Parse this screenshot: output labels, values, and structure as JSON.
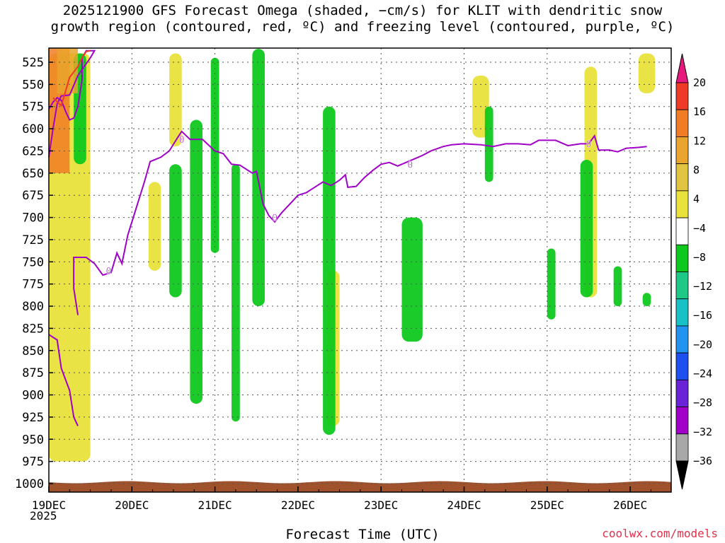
{
  "title": "2025121900 GFS Forecast Omega (shaded, −cm/s) for KLIT with dendritic snow\ngrowth region (contoured, red, ºC) and freezing level (contoured, purple, ºC)",
  "footer": {
    "xlabel": "Forecast Time (UTC)",
    "credit": "coolwx.com/models",
    "year": "2025"
  },
  "chart_data": {
    "type": "heatmap",
    "title": "2025121900 GFS Forecast Omega (shaded, −cm/s) for KLIT with dendritic snow growth region (contoured, red, ºC) and freezing level (contoured, purple, ºC)",
    "xlabel": "Forecast Time (UTC)",
    "ylabel": "",
    "x_ticks": [
      "19DEC",
      "20DEC",
      "21DEC",
      "22DEC",
      "23DEC",
      "24DEC",
      "25DEC",
      "26DEC"
    ],
    "x_range_days": [
      0,
      7.5
    ],
    "y_ticks": [
      525,
      550,
      575,
      600,
      625,
      650,
      675,
      700,
      725,
      750,
      775,
      800,
      825,
      850,
      875,
      900,
      925,
      950,
      975,
      1000
    ],
    "y_range_hpa": [
      510,
      1010
    ],
    "grid": true,
    "colorbar": {
      "labels": [
        "20",
        "16",
        "12",
        "8",
        "4",
        "−4",
        "−8",
        "−12",
        "−16",
        "−20",
        "−24",
        "−28",
        "−32",
        "−36"
      ],
      "colors": [
        "#e8197e",
        "#f03a28",
        "#f07c25",
        "#e9a52d",
        "#e3c440",
        "#e9e23c",
        "#ffffff",
        "#0fc81e",
        "#1ec887",
        "#18c0c8",
        "#2294f0",
        "#1e50f0",
        "#6a23d6",
        "#a000c8",
        "#a8a8a8",
        "#000000"
      ]
    },
    "freezing_level": {
      "label": "0",
      "points": [
        [
          0,
          632
        ],
        [
          0.05,
          600
        ],
        [
          0.1,
          572
        ],
        [
          0.15,
          563
        ],
        [
          0.25,
          562
        ],
        [
          0.35,
          540
        ],
        [
          0.5,
          520
        ],
        [
          0.55,
          512
        ],
        [
          0.45,
          512
        ],
        [
          0.4,
          520
        ],
        [
          0.4,
          545
        ],
        [
          0.35,
          575
        ],
        [
          0.3,
          588
        ],
        [
          0.25,
          590
        ],
        [
          0.2,
          580
        ],
        [
          0.15,
          568
        ],
        [
          0.1,
          565
        ],
        [
          0.05,
          570
        ],
        [
          0,
          578
        ]
      ],
      "main": [
        [
          0.35,
          810
        ],
        [
          0.3,
          780
        ],
        [
          0.3,
          745
        ],
        [
          0.45,
          745
        ],
        [
          0.55,
          752
        ],
        [
          0.65,
          765
        ],
        [
          0.75,
          762
        ],
        [
          0.82,
          740
        ],
        [
          0.88,
          752
        ],
        [
          0.95,
          720
        ],
        [
          1.05,
          690
        ],
        [
          1.15,
          660
        ],
        [
          1.22,
          637
        ],
        [
          1.35,
          632
        ],
        [
          1.45,
          625
        ],
        [
          1.55,
          610
        ],
        [
          1.6,
          603
        ],
        [
          1.7,
          612
        ],
        [
          1.85,
          612
        ],
        [
          2.0,
          625
        ],
        [
          2.1,
          628
        ],
        [
          2.2,
          640
        ],
        [
          2.3,
          641
        ],
        [
          2.45,
          650
        ],
        [
          2.5,
          648
        ],
        [
          2.58,
          685
        ],
        [
          2.65,
          698
        ],
        [
          2.72,
          705
        ],
        [
          2.8,
          695
        ],
        [
          2.9,
          685
        ],
        [
          3.0,
          675
        ],
        [
          3.1,
          672
        ],
        [
          3.2,
          666
        ],
        [
          3.3,
          660
        ],
        [
          3.4,
          664
        ],
        [
          3.5,
          658
        ],
        [
          3.57,
          652
        ],
        [
          3.6,
          666
        ],
        [
          3.7,
          665
        ],
        [
          3.8,
          655
        ],
        [
          3.9,
          647
        ],
        [
          4.0,
          640
        ],
        [
          4.1,
          638
        ],
        [
          4.2,
          642
        ],
        [
          4.35,
          636
        ],
        [
          4.5,
          630
        ],
        [
          4.6,
          625
        ],
        [
          4.75,
          620
        ],
        [
          4.85,
          618
        ],
        [
          5.0,
          617
        ],
        [
          5.2,
          618
        ],
        [
          5.35,
          620
        ],
        [
          5.5,
          617
        ],
        [
          5.65,
          617
        ],
        [
          5.8,
          618
        ],
        [
          5.9,
          613
        ],
        [
          6.1,
          613
        ],
        [
          6.25,
          619
        ],
        [
          6.4,
          617
        ],
        [
          6.5,
          617
        ],
        [
          6.57,
          608
        ],
        [
          6.62,
          624
        ],
        [
          6.75,
          624
        ],
        [
          6.85,
          626
        ],
        [
          6.95,
          622
        ],
        [
          7.1,
          621
        ],
        [
          7.2,
          620
        ]
      ],
      "lower": [
        [
          0,
          832
        ],
        [
          0.1,
          838
        ],
        [
          0.15,
          870
        ],
        [
          0.25,
          895
        ],
        [
          0.3,
          925
        ],
        [
          0.35,
          935
        ]
      ]
    },
    "dendritic_region": {
      "label": "",
      "points": [
        [
          0.05,
          565
        ],
        [
          0.15,
          574
        ],
        [
          0.25,
          542
        ],
        [
          0.35,
          530
        ],
        [
          0.4,
          520
        ],
        [
          0.45,
          513
        ],
        [
          0.5,
          512
        ]
      ]
    },
    "omega_shading": [
      {
        "band": "4 to 8",
        "desc": "yellow ascent plumes",
        "blobs": [
          [
            0.0,
            0.5,
            515,
            975
          ],
          [
            1.2,
            1.35,
            660,
            760
          ],
          [
            1.45,
            1.6,
            515,
            620
          ],
          [
            3.35,
            3.5,
            760,
            935
          ],
          [
            5.1,
            5.3,
            540,
            610
          ],
          [
            6.45,
            6.6,
            530,
            790
          ],
          [
            7.1,
            7.3,
            515,
            560
          ]
        ]
      },
      {
        "band": "-4 to -8",
        "desc": "green subsidence columns",
        "blobs": [
          [
            0.3,
            0.45,
            515,
            640
          ],
          [
            1.45,
            1.6,
            640,
            790
          ],
          [
            1.7,
            1.85,
            590,
            910
          ],
          [
            1.95,
            2.05,
            520,
            740
          ],
          [
            2.2,
            2.3,
            640,
            930
          ],
          [
            2.45,
            2.6,
            510,
            800
          ],
          [
            3.3,
            3.45,
            575,
            945
          ],
          [
            4.25,
            4.5,
            700,
            840
          ],
          [
            5.25,
            5.35,
            575,
            660
          ],
          [
            6.0,
            6.1,
            735,
            815
          ],
          [
            6.4,
            6.55,
            635,
            790
          ],
          [
            6.8,
            6.9,
            755,
            800
          ],
          [
            7.15,
            7.25,
            785,
            800
          ]
        ]
      }
    ]
  }
}
